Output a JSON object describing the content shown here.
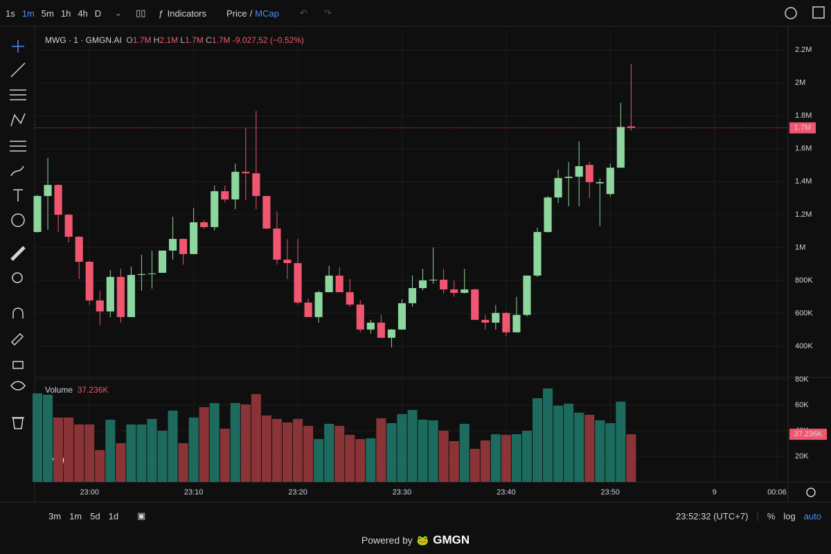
{
  "toolbar": {
    "intervals": [
      "1s",
      "1m",
      "5m",
      "1h",
      "4h",
      "D"
    ],
    "active_interval": 1,
    "indicators": "Indicators",
    "price": "Price",
    "slash": "/",
    "mcap": "MCap"
  },
  "chart_data": {
    "type": "candlestick",
    "title": "MWG · 1 · GMGN.AI",
    "legend": {
      "o": "O",
      "o_value": "1.7M",
      "h": "H",
      "h_value": "2.1M",
      "l": "L",
      "l_value": "1.7M",
      "c": "C",
      "c_value": "1.7M",
      "change": "-9.027,52 (−0.52%)"
    },
    "x": [
      "22:55",
      "22:56",
      "22:57",
      "22:58",
      "22:59",
      "23:00",
      "23:01",
      "23:02",
      "23:03",
      "23:04",
      "23:05",
      "23:06",
      "23:07",
      "23:08",
      "23:09",
      "23:10",
      "23:11",
      "23:12",
      "23:13",
      "23:14",
      "23:15",
      "23:16",
      "23:17",
      "23:18",
      "23:19",
      "23:20",
      "23:21",
      "23:22",
      "23:23",
      "23:24",
      "23:25",
      "23:26",
      "23:27",
      "23:28",
      "23:29",
      "23:30",
      "23:31",
      "23:32",
      "23:33",
      "23:34",
      "23:35",
      "23:36",
      "23:37",
      "23:38",
      "23:39",
      "23:40",
      "23:41",
      "23:42",
      "23:43",
      "23:44",
      "23:45",
      "23:46",
      "23:47",
      "23:48",
      "23:49",
      "23:50",
      "23:51",
      "23:52"
    ],
    "open": [
      1094000,
      1313000,
      1380000,
      1199000,
      1065000,
      913000,
      678000,
      611000,
      821000,
      577000,
      833000,
      838000,
      846000,
      981000,
      1052000,
      960000,
      1153000,
      1124000,
      1342000,
      1292000,
      1460000,
      1451000,
      1313000,
      1115000,
      926000,
      905000,
      665000,
      577000,
      728000,
      829000,
      728000,
      653000,
      501000,
      543000,
      451000,
      501000,
      661000,
      753000,
      800000,
      804000,
      745000,
      724000,
      745000,
      560000,
      543000,
      602000,
      484000,
      590000,
      829000,
      1094000,
      1304000,
      1422000,
      1430000,
      1502000,
      1390000,
      1325000,
      1485000,
      1736000
    ],
    "high": [
      1320000,
      1544000,
      1385000,
      1203000,
      1070000,
      920000,
      737000,
      863000,
      871000,
      884000,
      955000,
      980000,
      981000,
      1187000,
      1055000,
      1241000,
      1166000,
      1376000,
      1376000,
      1510000,
      1725000,
      1830000,
      1313000,
      1220000,
      1050000,
      1052000,
      690000,
      737000,
      888000,
      880000,
      808000,
      680000,
      560000,
      590000,
      505000,
      685000,
      830000,
      870000,
      1000000,
      870000,
      800000,
      870000,
      750000,
      590000,
      650000,
      610000,
      700000,
      830000,
      1120000,
      1313000,
      1474000,
      1520000,
      1645000,
      1520000,
      1420000,
      1510000,
      1880000,
      2116000
    ],
    "low": [
      1090000,
      1107000,
      1094000,
      1031000,
      808000,
      652000,
      526000,
      577000,
      543000,
      577000,
      737000,
      750000,
      846000,
      926000,
      896000,
      960000,
      1115000,
      1103000,
      1275000,
      1233000,
      1288000,
      1233000,
      1110000,
      896000,
      808000,
      653000,
      577000,
      543000,
      728000,
      728000,
      640000,
      484000,
      476000,
      451000,
      392000,
      501000,
      640000,
      740000,
      780000,
      720000,
      700000,
      720000,
      560000,
      500000,
      500000,
      460000,
      484000,
      580000,
      820000,
      1090000,
      1270000,
      1250000,
      1250000,
      1300000,
      1130000,
      1310000,
      1485000,
      1710000
    ],
    "close": [
      1313000,
      1380000,
      1199000,
      1065000,
      913000,
      678000,
      611000,
      821000,
      577000,
      833000,
      838000,
      842000,
      981000,
      1052000,
      960000,
      1153000,
      1124000,
      1342000,
      1292000,
      1460000,
      1451000,
      1313000,
      1115000,
      926000,
      905000,
      665000,
      577000,
      728000,
      829000,
      728000,
      653000,
      501000,
      543000,
      451000,
      501000,
      661000,
      753000,
      800000,
      804000,
      745000,
      724000,
      745000,
      560000,
      543000,
      602000,
      484000,
      590000,
      829000,
      1094000,
      1304000,
      1422000,
      1430000,
      1494000,
      1397000,
      1397000,
      1485000,
      1733000,
      1726972
    ],
    "last_price_label": "1.7M",
    "up_color": "#8dd69d",
    "down_color": "#f0566f",
    "xlim": [
      "22:54:44",
      "00:07:04"
    ],
    "xticks": [
      "23:00",
      "23:10",
      "23:20",
      "23:30",
      "23:40",
      "23:50",
      {
        "value": "00:00",
        "label": "9"
      },
      "00:06"
    ],
    "ylim": [
      210000,
      2315000
    ],
    "yticks": [
      {
        "value": 400000,
        "label": "400K"
      },
      {
        "value": 600000,
        "label": "600K"
      },
      {
        "value": 800000,
        "label": "800K"
      },
      {
        "value": 1000000,
        "label": "1M"
      },
      {
        "value": 1200000,
        "label": "1.2M"
      },
      {
        "value": 1400000,
        "label": "1.4M"
      },
      {
        "value": 1600000,
        "label": "1.6M"
      },
      {
        "value": 1800000,
        "label": "1.8M"
      },
      {
        "value": 2000000,
        "label": "2M"
      },
      {
        "value": 2200000,
        "label": "2.2M"
      }
    ],
    "grid": true,
    "volume": {
      "name": "Volume",
      "value_label": "37.236K",
      "up_color": "#1d6b5e",
      "down_color": "#8b3437",
      "values": [
        69200,
        68100,
        50300,
        50300,
        44900,
        44900,
        24900,
        48600,
        30300,
        44900,
        44900,
        49200,
        40000,
        55700,
        30300,
        50300,
        58400,
        61600,
        41600,
        61600,
        60500,
        68600,
        51900,
        49200,
        46500,
        49200,
        43800,
        33500,
        45400,
        43800,
        36800,
        33500,
        34100,
        49700,
        45900,
        53000,
        56200,
        48600,
        48100,
        40000,
        31900,
        45400,
        25900,
        32400,
        37300,
        36800,
        37300,
        40000,
        65400,
        73000,
        59500,
        61100,
        54100,
        52400,
        48100,
        45900,
        62700,
        37236
      ],
      "ylim": [
        0,
        81600
      ],
      "yticks": [
        {
          "value": 20000,
          "label": "20K"
        },
        {
          "value": 40000,
          "label": "40K"
        },
        {
          "value": 60000,
          "label": "60K"
        },
        {
          "value": 80000,
          "label": "80K"
        }
      ]
    }
  },
  "bottom_bar": {
    "ranges": [
      "3m",
      "1m",
      "5d",
      "1d"
    ],
    "clock": "23:52:32 (UTC+7)",
    "percent": "%",
    "log": "log",
    "auto": "auto"
  },
  "footer": {
    "powered": "Powered by",
    "brand": "GMGN"
  }
}
